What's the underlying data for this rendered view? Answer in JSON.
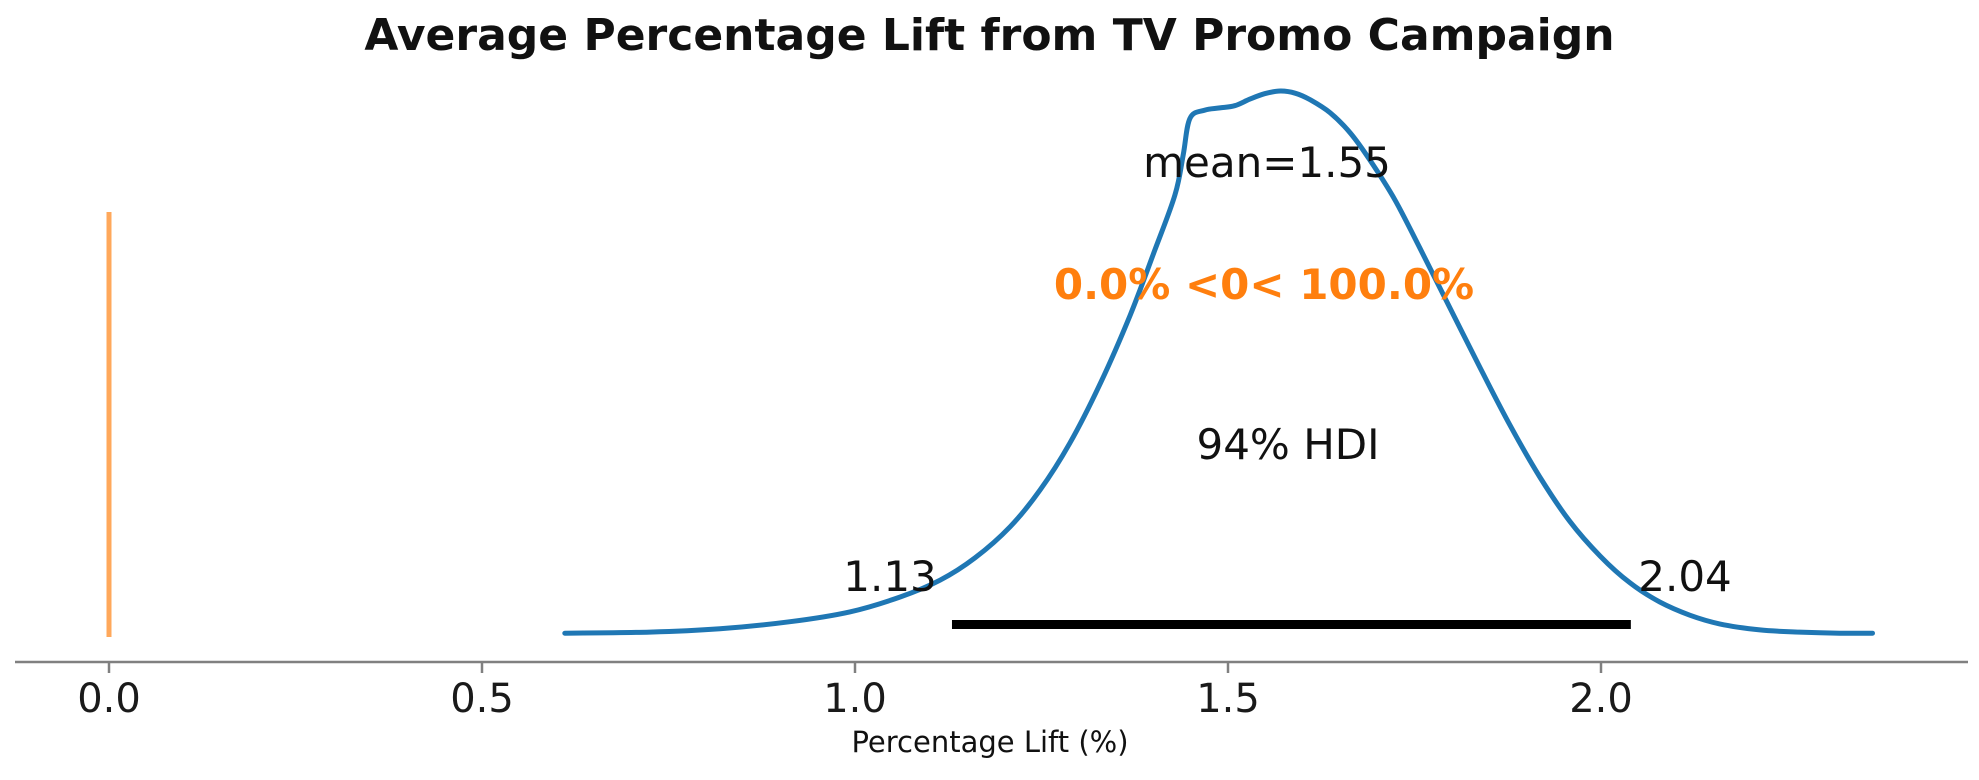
{
  "chart_data": {
    "type": "line",
    "subtype": "posterior_kde",
    "title": "Average Percentage Lift from TV Promo Campaign",
    "xlabel": "Percentage Lift (%)",
    "ylabel": "",
    "grid": false,
    "legend": "none",
    "xlim": [
      -0.13,
      2.49
    ],
    "xticks": [
      0.0,
      0.5,
      1.0,
      1.5,
      2.0
    ],
    "xtick_labels": [
      "0.0",
      "0.5",
      "1.0",
      "1.5",
      "2.0"
    ],
    "stats": {
      "mean": 1.55,
      "hdi_prob": "94%",
      "hdi_lower": 1.13,
      "hdi_upper": 2.04,
      "ref_value": 0,
      "pct_below_ref": "0.0%",
      "pct_above_ref": "100.0%"
    },
    "annotations": {
      "mean_label": "mean=1.55",
      "prob_label": "0.0% <0< 100.0%",
      "hdi_label": "94% HDI",
      "hdi_lower_label": "1.13",
      "hdi_upper_label": "2.04"
    },
    "ref_line_x": 0.0,
    "hdi_segment": [
      1.13,
      2.04
    ],
    "colors": {
      "kde_line": "#1f77b4",
      "ref_line": "#ff7f0e",
      "ref_line_alpha": 0.68,
      "prob_text": "#ff7f0e",
      "hdi_bar": "#000000",
      "axis": "#808080",
      "text": "#111111"
    },
    "series": [
      {
        "name": "posterior_density",
        "color": "#1f77b4",
        "points": [
          [
            0.611,
            0.007
          ],
          [
            0.725,
            0.009
          ],
          [
            0.819,
            0.015
          ],
          [
            0.913,
            0.028
          ],
          [
            0.993,
            0.046
          ],
          [
            1.06,
            0.073
          ],
          [
            1.114,
            0.104
          ],
          [
            1.161,
            0.145
          ],
          [
            1.208,
            0.202
          ],
          [
            1.248,
            0.269
          ],
          [
            1.288,
            0.355
          ],
          [
            1.328,
            0.462
          ],
          [
            1.369,
            0.59
          ],
          [
            1.402,
            0.709
          ],
          [
            1.429,
            0.81
          ],
          [
            1.44,
            0.883
          ],
          [
            1.449,
            0.95
          ],
          [
            1.469,
            0.965
          ],
          [
            1.489,
            0.969
          ],
          [
            1.509,
            0.973
          ],
          [
            1.529,
            0.985
          ],
          [
            1.549,
            0.995
          ],
          [
            1.57,
            1.0
          ],
          [
            1.59,
            0.996
          ],
          [
            1.61,
            0.984
          ],
          [
            1.637,
            0.96
          ],
          [
            1.664,
            0.923
          ],
          [
            1.69,
            0.874
          ],
          [
            1.724,
            0.8
          ],
          [
            1.757,
            0.713
          ],
          [
            1.797,
            0.604
          ],
          [
            1.838,
            0.493
          ],
          [
            1.878,
            0.388
          ],
          [
            1.918,
            0.293
          ],
          [
            1.958,
            0.212
          ],
          [
            1.999,
            0.148
          ],
          [
            2.039,
            0.099
          ],
          [
            2.079,
            0.064
          ],
          [
            2.119,
            0.04
          ],
          [
            2.159,
            0.024
          ],
          [
            2.213,
            0.013
          ],
          [
            2.266,
            0.009
          ],
          [
            2.32,
            0.007
          ],
          [
            2.364,
            0.007
          ]
        ]
      }
    ]
  }
}
